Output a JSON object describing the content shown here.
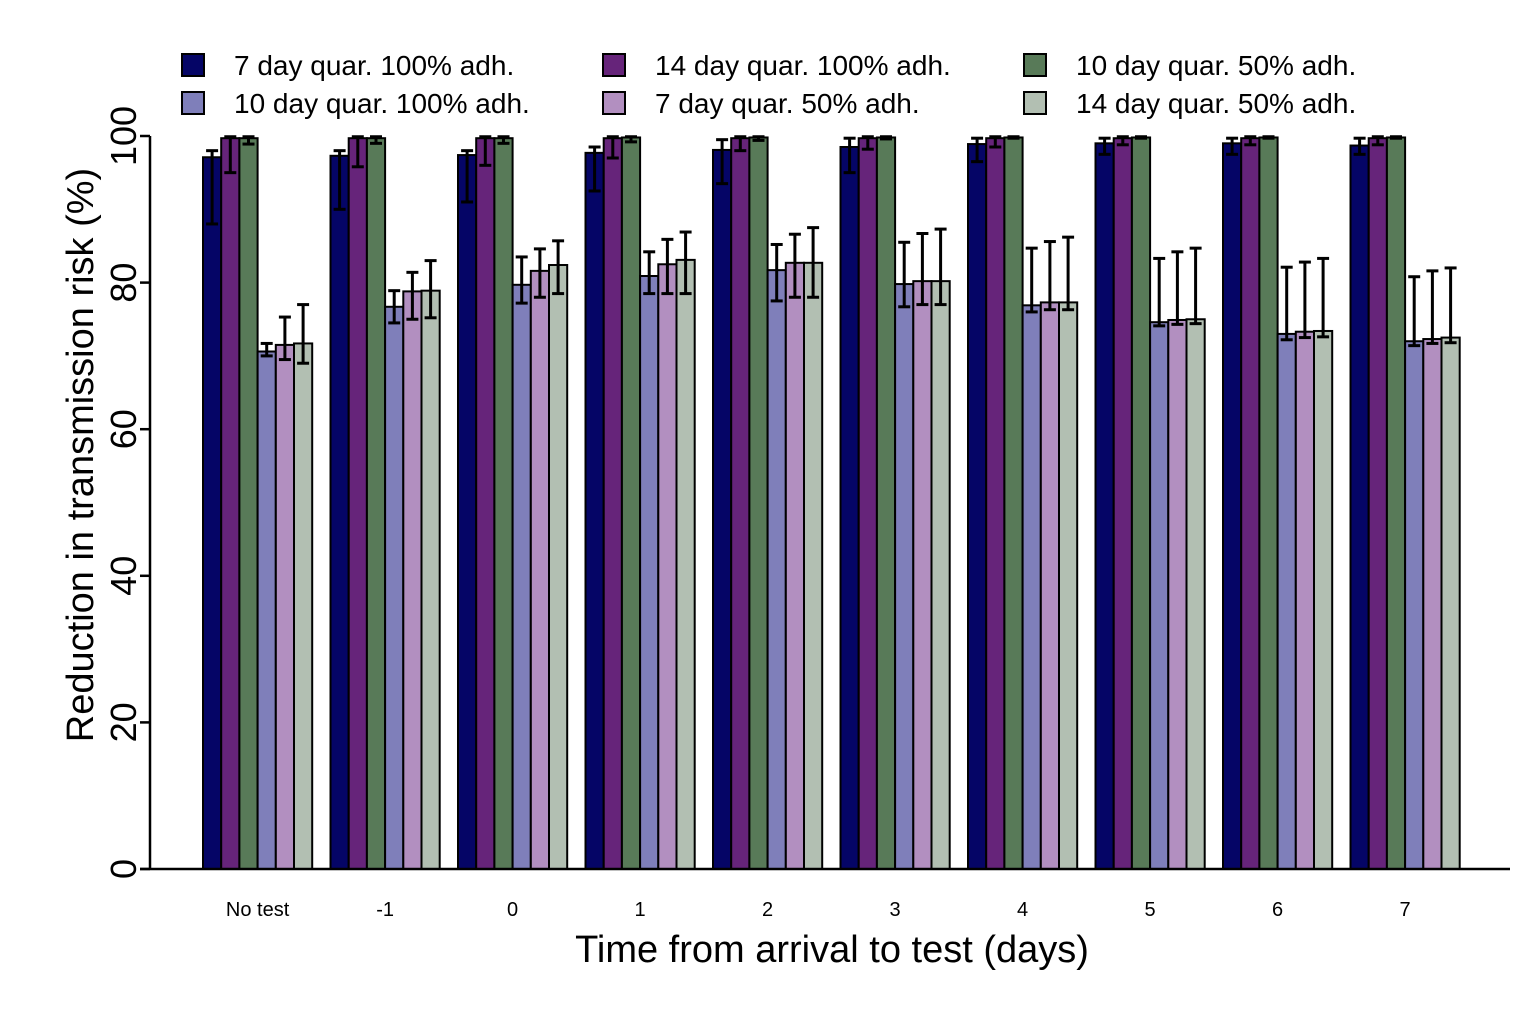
{
  "chart_data": {
    "type": "bar",
    "xlabel": "Time from arrival to test (days)",
    "ylabel": "Reduction in transmission risk (%)",
    "ylim": [
      0,
      100
    ],
    "yticks": [
      0,
      20,
      40,
      60,
      80,
      100
    ],
    "categories": [
      "No test",
      "-1",
      "0",
      "1",
      "2",
      "3",
      "4",
      "5",
      "6",
      "7"
    ],
    "legend_position": "top",
    "series": [
      {
        "name": "7 day quar. 100% adh.",
        "color": "#050566",
        "values": [
          97.1,
          97.3,
          97.4,
          97.7,
          98.1,
          98.5,
          98.9,
          99.0,
          99.0,
          98.7
        ],
        "lower": [
          88.0,
          90.0,
          91.0,
          92.5,
          93.5,
          95.0,
          96.5,
          97.5,
          97.5,
          97.5
        ],
        "upper": [
          98.0,
          98.0,
          98.0,
          98.5,
          99.5,
          99.7,
          99.7,
          99.7,
          99.7,
          99.7
        ]
      },
      {
        "name": "14 day quar. 100% adh.",
        "color": "#66247a",
        "values": [
          99.7,
          99.7,
          99.7,
          99.7,
          99.7,
          99.7,
          99.7,
          99.7,
          99.7,
          99.7
        ],
        "lower": [
          95.0,
          95.8,
          96.0,
          97.0,
          98.0,
          98.2,
          98.5,
          98.8,
          98.8,
          98.8
        ],
        "upper": [
          99.9,
          99.9,
          99.9,
          99.9,
          99.9,
          99.9,
          99.9,
          99.9,
          99.9,
          99.9
        ]
      },
      {
        "name": "10 day quar. 50% adh.",
        "color": "#587a58",
        "values": [
          99.7,
          99.7,
          99.7,
          99.8,
          99.8,
          99.8,
          99.8,
          99.8,
          99.8,
          99.8
        ],
        "lower": [
          98.9,
          99.0,
          99.0,
          99.2,
          99.4,
          99.6,
          99.7,
          99.7,
          99.7,
          99.7
        ],
        "upper": [
          99.9,
          99.9,
          99.9,
          99.9,
          99.9,
          99.9,
          99.9,
          99.9,
          99.9,
          99.9
        ]
      },
      {
        "name": "10 day quar. 100% adh.",
        "color": "#7f7fba",
        "values": [
          70.6,
          76.7,
          79.7,
          80.9,
          81.7,
          79.8,
          76.9,
          74.6,
          73.0,
          72.0
        ],
        "lower": [
          70.0,
          74.5,
          77.2,
          78.5,
          77.5,
          76.7,
          76.0,
          74.1,
          72.2,
          71.4
        ],
        "upper": [
          71.7,
          78.9,
          83.5,
          84.2,
          85.2,
          85.5,
          84.7,
          83.3,
          82.1,
          80.8
        ]
      },
      {
        "name": "7 day quar. 50% adh.",
        "color": "#b28fc0",
        "values": [
          71.5,
          78.8,
          81.6,
          82.5,
          82.7,
          80.2,
          77.3,
          74.9,
          73.3,
          72.3
        ],
        "lower": [
          69.5,
          75.0,
          78.0,
          78.5,
          78.0,
          77.0,
          76.3,
          74.3,
          72.5,
          71.7
        ],
        "upper": [
          75.3,
          81.4,
          84.6,
          85.9,
          86.6,
          86.7,
          85.6,
          84.2,
          82.8,
          81.6
        ]
      },
      {
        "name": "14 day quar. 50% adh.",
        "color": "#b2bfb2",
        "values": [
          71.7,
          78.9,
          82.4,
          83.1,
          82.7,
          80.2,
          77.3,
          75.0,
          73.4,
          72.5
        ],
        "lower": [
          69.0,
          75.2,
          78.5,
          78.5,
          78.0,
          77.0,
          76.3,
          74.4,
          72.6,
          71.8
        ],
        "upper": [
          77.0,
          83.0,
          85.7,
          86.9,
          87.5,
          87.3,
          86.2,
          84.7,
          83.3,
          82.0
        ]
      }
    ]
  }
}
